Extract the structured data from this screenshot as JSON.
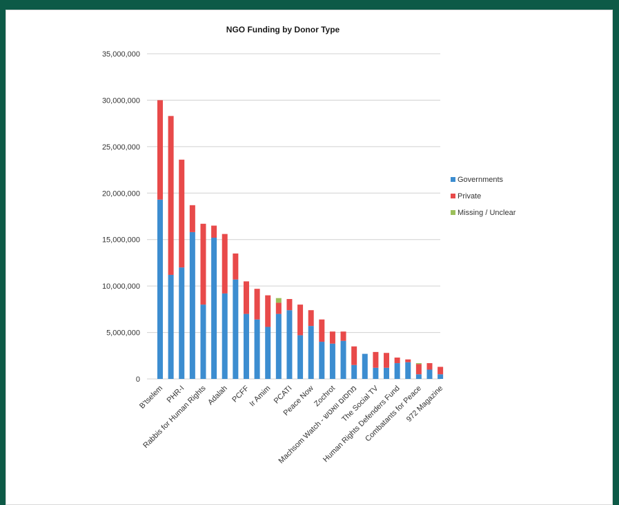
{
  "chart_data": {
    "type": "bar",
    "stacked": true,
    "title": "NGO Funding by Donor Type",
    "xlabel": "",
    "ylabel": "",
    "ylim": [
      0,
      35000000
    ],
    "yticks": [
      0,
      5000000,
      10000000,
      15000000,
      20000000,
      25000000,
      30000000,
      35000000
    ],
    "ytick_labels": [
      "0",
      "5,000,000",
      "10,000,000",
      "15,000,000",
      "20,000,000",
      "25,000,000",
      "30,000,000",
      "35,000,000"
    ],
    "grid": true,
    "legend_position": "right",
    "categories": [
      "B'tselem",
      "",
      "PHR-I",
      "",
      "Rabbis for Human Rights",
      "",
      "Adalah",
      "",
      "PCFF",
      "",
      "Ir Amim",
      "",
      "PCATI",
      "",
      "Peace Now",
      "",
      "Zochrot",
      "",
      "Machsom Watch - מחסום וואטש",
      "",
      "The Social TV",
      "",
      "Human Rights Defenders Fund",
      "",
      "Combatants for Peace",
      "",
      "972 Magazine"
    ],
    "series": [
      {
        "name": "Governments",
        "color": "#3c8dd0",
        "values": [
          19300000,
          11200000,
          12000000,
          15800000,
          8000000,
          15200000,
          9200000,
          10700000,
          7000000,
          6400000,
          5600000,
          7000000,
          7400000,
          4700000,
          5700000,
          4000000,
          3800000,
          4100000,
          1500000,
          2700000,
          1200000,
          1200000,
          1700000,
          1800000,
          500000,
          1000000,
          500000
        ]
      },
      {
        "name": "Private",
        "color": "#e84a4a",
        "values": [
          10700000,
          17100000,
          11600000,
          2900000,
          8700000,
          1300000,
          6400000,
          2800000,
          3500000,
          3300000,
          3400000,
          1200000,
          1200000,
          3300000,
          1700000,
          2400000,
          1300000,
          1000000,
          2000000,
          0,
          1700000,
          1600000,
          600000,
          300000,
          1100000,
          700000,
          800000
        ]
      },
      {
        "name": "Missing / Unclear",
        "color": "#9bbf5a",
        "values": [
          0,
          0,
          0,
          0,
          0,
          0,
          0,
          0,
          0,
          0,
          0,
          500000,
          0,
          0,
          0,
          0,
          0,
          0,
          0,
          0,
          0,
          0,
          0,
          0,
          100000,
          0,
          0
        ]
      }
    ]
  }
}
